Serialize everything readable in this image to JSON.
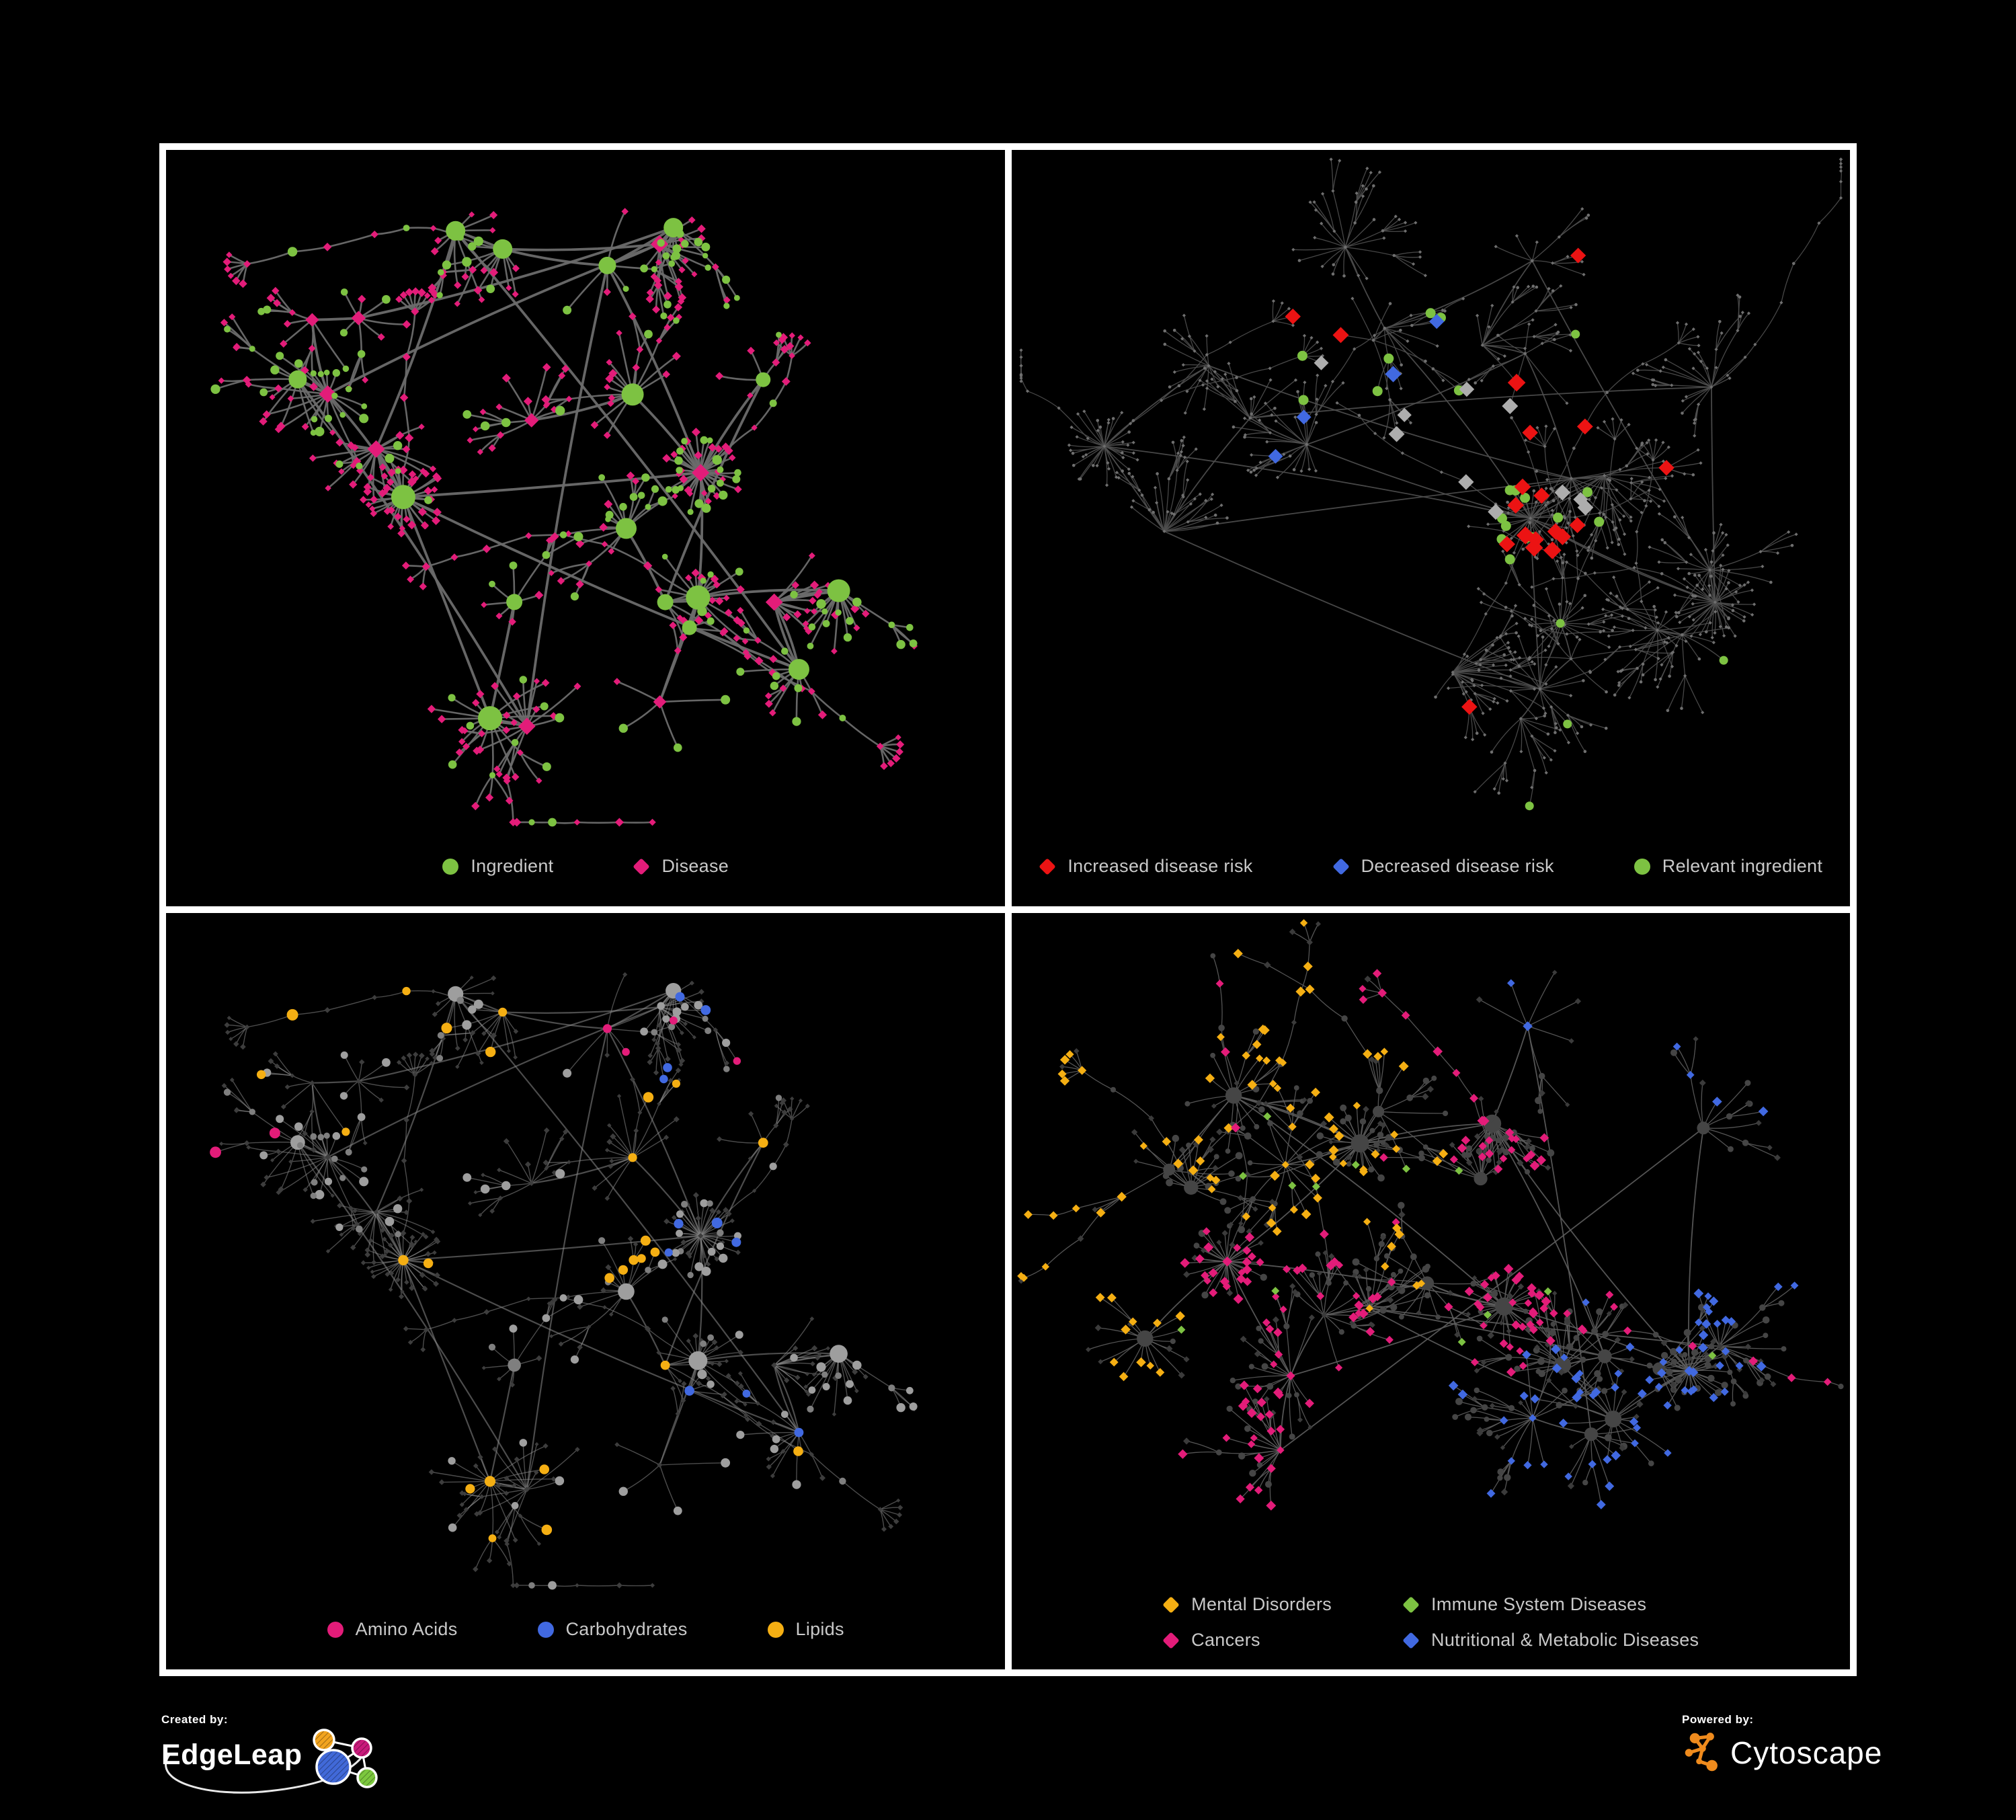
{
  "page": {
    "background": "#000000",
    "frame_color": "#ffffff",
    "legend_text_color": "#c9c9c9"
  },
  "panels": [
    {
      "name": "ingredient-disease-network",
      "legend": [
        {
          "label": "Ingredient",
          "shape": "circle",
          "color": "#7DC242"
        },
        {
          "label": "Disease",
          "shape": "diamond",
          "color": "#E31C79"
        }
      ],
      "network": {
        "seed": 7,
        "hubs": 26,
        "leafMin": 4,
        "leafMax": 20,
        "subProb": 0.16,
        "chains": 7,
        "megaHubs": 2,
        "rule": "byType",
        "edgeColor": "#6b6b6b",
        "edgeWidth": 2.6,
        "hubEdgeWidth": 3.8,
        "edgeOpacity": 0.95,
        "colors": {
          "ingredient": "#7DC242",
          "disease": "#E31C79"
        }
      }
    },
    {
      "name": "disease-risk-network",
      "legend": [
        {
          "label": "Increased disease risk",
          "shape": "diamond",
          "color": "#EC1313"
        },
        {
          "label": "Decreased disease risk",
          "shape": "diamond",
          "color": "#4169E1"
        },
        {
          "label": "Relevant ingredient",
          "shape": "circle",
          "color": "#7DC242"
        }
      ],
      "network": {
        "seed": 23,
        "hubs": 24,
        "leafMin": 5,
        "leafMax": 22,
        "subProb": 0.3,
        "chains": 16,
        "megaHubs": 3,
        "rule": "highlight",
        "edgeColor": "#4f4f4f",
        "edgeWidth": 1.3,
        "hubEdgeWidth": 1.8,
        "edgeOpacity": 0.9,
        "colors": {
          "base": "#6f6f6f",
          "increased": "#EC1313",
          "decreased": "#4169E1",
          "neutral": "#ADADAD",
          "ingredient": "#7DC242"
        }
      }
    },
    {
      "name": "nutrient-class-network",
      "legend": [
        {
          "label": "Amino Acids",
          "shape": "circle",
          "color": "#E31C79"
        },
        {
          "label": "Carbohydrates",
          "shape": "circle",
          "color": "#4169E1"
        },
        {
          "label": "Lipids",
          "shape": "circle",
          "color": "#F5AF13"
        }
      ],
      "network": {
        "seed": 7,
        "hubs": 26,
        "leafMin": 4,
        "leafMax": 20,
        "subProb": 0.16,
        "chains": 7,
        "megaHubs": 2,
        "rule": "classes",
        "edgeColor": "#8a8a8a",
        "edgeWidth": 1.4,
        "hubEdgeWidth": 2.2,
        "edgeOpacity": 0.55,
        "colors": {
          "aminoAcids": "#E31C79",
          "carbohydrates": "#4169E1",
          "lipids": "#F5AF13",
          "ingredientBase": "#9e9e9e",
          "ingredientDark": "#7f7f7f",
          "diseaseBase": "#3d3d3d"
        }
      }
    },
    {
      "name": "disease-category-network",
      "legend": [
        {
          "label": "Mental Disorders",
          "shape": "diamond",
          "color": "#F5AF13"
        },
        {
          "label": "Immune System Diseases",
          "shape": "diamond",
          "color": "#7DC242"
        },
        {
          "label": "Cancers",
          "shape": "diamond",
          "color": "#E31C79"
        },
        {
          "label": "Nutritional & Metabolic Diseases",
          "shape": "diamond",
          "color": "#4169E1"
        }
      ],
      "network": {
        "seed": 51,
        "hubs": 26,
        "leafMin": 6,
        "leafMax": 24,
        "subProb": 0.28,
        "chains": 10,
        "megaHubs": 4,
        "rule": "categories",
        "edgeColor": "#5d5d5d",
        "edgeWidth": 1.3,
        "hubEdgeWidth": 1.8,
        "edgeOpacity": 0.9,
        "colors": {
          "mental": "#F5AF13",
          "immune": "#7DC242",
          "cancers": "#E31C79",
          "nutritional": "#4169E1",
          "nodeBase": "#3b3b3b",
          "circleBase": "#454545"
        }
      }
    }
  ],
  "footer": {
    "created_by": {
      "label": "Created by:",
      "brand": "EdgeLeap"
    },
    "powered_by": {
      "label": "Powered by:",
      "brand": "Cytoscape"
    },
    "edgeleap_colors": {
      "blue": "#4169D8",
      "orange": "#F2A41F",
      "magenta": "#C9197B",
      "green": "#7CC83E"
    },
    "cytoscape_color": "#EF8B1D"
  }
}
